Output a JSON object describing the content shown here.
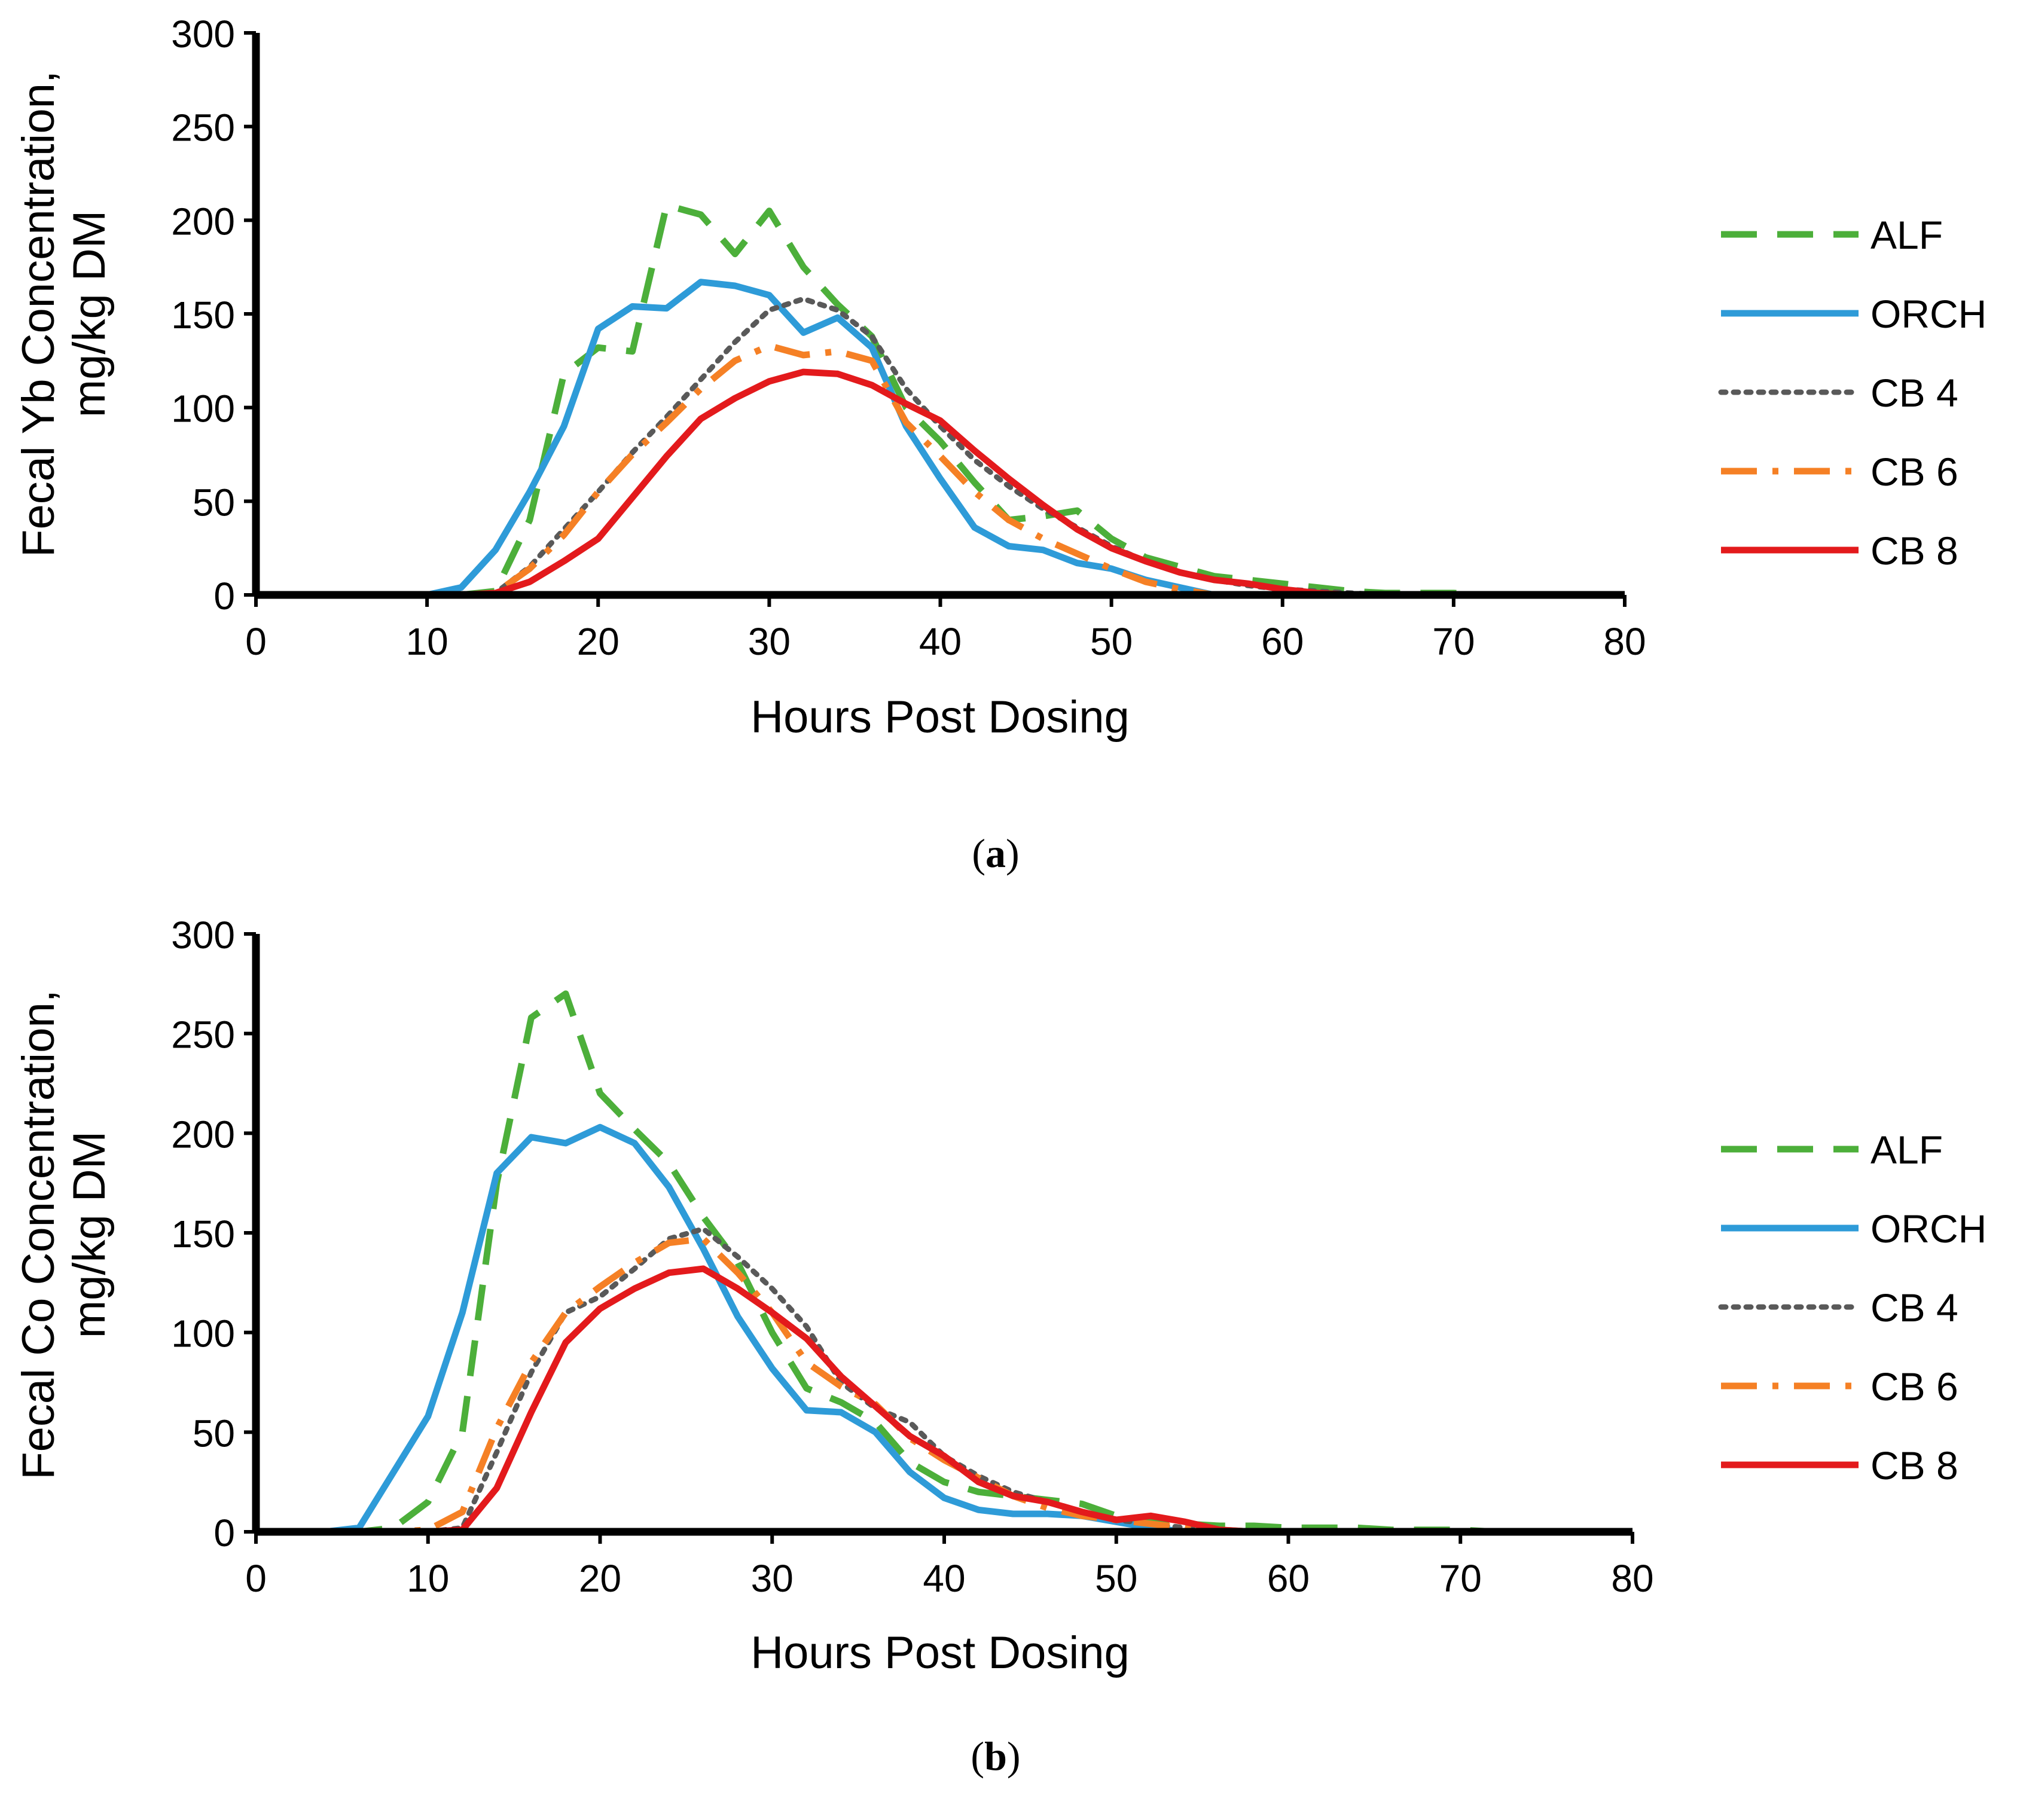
{
  "chart_data": [
    {
      "type": "line",
      "panel_label": "a",
      "title": "",
      "xlabel": "Hours Post Dosing",
      "ylabel_line1": "Fecal Yb Concentration,",
      "ylabel_line2": "mg/kg DM",
      "xlim": [
        0,
        80
      ],
      "ylim": [
        0,
        300
      ],
      "xticks": [
        "0",
        "10",
        "20",
        "30",
        "40",
        "50",
        "60",
        "70",
        "80"
      ],
      "yticks": [
        "0",
        "50",
        "100",
        "150",
        "200",
        "250",
        "300"
      ],
      "grid": false,
      "legend_position": "right",
      "series": [
        {
          "name": "ALF",
          "color": "#4CAF3A",
          "dash": "dashed",
          "x": [
            2,
            4,
            6,
            8,
            10,
            12,
            14,
            16,
            18,
            20,
            22,
            24,
            26,
            28,
            30,
            32,
            34,
            36,
            38,
            40,
            42,
            44,
            46,
            48,
            50,
            52,
            54,
            56,
            58,
            60,
            62,
            64,
            66,
            68,
            70,
            72
          ],
          "y": [
            0,
            0,
            0,
            0,
            0,
            0,
            2,
            40,
            118,
            132,
            130,
            208,
            203,
            182,
            205,
            175,
            155,
            138,
            100,
            82,
            60,
            40,
            42,
            45,
            30,
            20,
            15,
            10,
            8,
            6,
            4,
            2,
            1,
            1,
            1,
            0
          ]
        },
        {
          "name": "ORCH",
          "color": "#2E9BD8",
          "dash": "solid",
          "x": [
            2,
            4,
            6,
            8,
            10,
            12,
            14,
            16,
            18,
            20,
            22,
            24,
            26,
            28,
            30,
            32,
            34,
            36,
            38,
            40,
            42,
            44,
            46,
            48,
            50,
            52,
            54,
            56,
            58,
            60,
            62,
            64,
            66,
            68,
            70,
            72
          ],
          "y": [
            0,
            0,
            0,
            0,
            0,
            4,
            24,
            55,
            90,
            142,
            154,
            153,
            167,
            165,
            160,
            140,
            148,
            132,
            90,
            62,
            36,
            26,
            24,
            17,
            14,
            8,
            4,
            0,
            0,
            0,
            0,
            0,
            0,
            0,
            0,
            0
          ]
        },
        {
          "name": "CB 4",
          "color": "#595959",
          "dash": "dotted",
          "x": [
            2,
            4,
            6,
            8,
            10,
            12,
            14,
            16,
            18,
            20,
            22,
            24,
            26,
            28,
            30,
            32,
            34,
            36,
            38,
            40,
            42,
            44,
            46,
            48,
            50,
            52,
            54,
            56,
            58,
            60,
            62,
            64,
            66,
            68,
            70,
            72
          ],
          "y": [
            0,
            0,
            0,
            0,
            0,
            0,
            1,
            15,
            35,
            55,
            76,
            95,
            115,
            135,
            152,
            158,
            152,
            138,
            110,
            90,
            72,
            58,
            46,
            36,
            26,
            18,
            12,
            8,
            5,
            3,
            2,
            1,
            0,
            0,
            0,
            0
          ]
        },
        {
          "name": "CB 6",
          "color": "#F58025",
          "dash": "dashdot",
          "x": [
            2,
            4,
            6,
            8,
            10,
            12,
            14,
            16,
            18,
            20,
            22,
            24,
            26,
            28,
            30,
            32,
            34,
            36,
            38,
            40,
            42,
            44,
            46,
            48,
            50,
            52,
            54,
            56,
            58,
            60,
            62,
            64,
            66,
            68,
            70,
            72
          ],
          "y": [
            0,
            0,
            0,
            0,
            0,
            0,
            1,
            14,
            32,
            55,
            75,
            92,
            110,
            125,
            133,
            128,
            130,
            125,
            92,
            74,
            55,
            40,
            30,
            22,
            14,
            7,
            3,
            0,
            0,
            0,
            0,
            0,
            0,
            0,
            0,
            0
          ]
        },
        {
          "name": "CB 8",
          "color": "#E31A1C",
          "dash": "solid",
          "x": [
            2,
            4,
            6,
            8,
            10,
            12,
            14,
            16,
            18,
            20,
            22,
            24,
            26,
            28,
            30,
            32,
            34,
            36,
            38,
            40,
            42,
            44,
            46,
            48,
            50,
            52,
            54,
            56,
            58,
            60,
            62,
            64,
            66,
            68,
            70,
            72
          ],
          "y": [
            0,
            0,
            0,
            0,
            0,
            0,
            1,
            7,
            18,
            30,
            52,
            74,
            94,
            105,
            114,
            119,
            118,
            112,
            102,
            93,
            77,
            62,
            48,
            35,
            25,
            18,
            12,
            8,
            6,
            3,
            1,
            0,
            0,
            0,
            0,
            0
          ]
        }
      ]
    },
    {
      "type": "line",
      "panel_label": "b",
      "title": "",
      "xlabel": "Hours Post Dosing",
      "ylabel_line1": "Fecal Co Concentration,",
      "ylabel_line2": "mg/kg DM",
      "xlim": [
        0,
        80
      ],
      "ylim": [
        0,
        300
      ],
      "xticks": [
        "0",
        "10",
        "20",
        "30",
        "40",
        "50",
        "60",
        "70",
        "80"
      ],
      "yticks": [
        "0",
        "50",
        "100",
        "150",
        "200",
        "250",
        "300"
      ],
      "grid": false,
      "legend_position": "right",
      "series": [
        {
          "name": "ALF",
          "color": "#4CAF3A",
          "dash": "dashed",
          "x": [
            2,
            4,
            6,
            8,
            10,
            12,
            14,
            16,
            18,
            20,
            22,
            24,
            26,
            28,
            30,
            32,
            34,
            36,
            38,
            40,
            42,
            44,
            46,
            48,
            50,
            52,
            54,
            56,
            58,
            60,
            62,
            64,
            66,
            68,
            70,
            72
          ],
          "y": [
            0,
            0,
            0,
            2,
            15,
            50,
            175,
            258,
            270,
            220,
            202,
            185,
            158,
            135,
            100,
            72,
            65,
            55,
            35,
            25,
            20,
            18,
            16,
            14,
            8,
            5,
            4,
            3,
            3,
            2,
            2,
            2,
            1,
            1,
            1,
            0
          ]
        },
        {
          "name": "ORCH",
          "color": "#2E9BD8",
          "dash": "solid",
          "x": [
            2,
            4,
            6,
            8,
            10,
            12,
            14,
            16,
            18,
            20,
            22,
            24,
            26,
            28,
            30,
            32,
            34,
            36,
            38,
            40,
            42,
            44,
            46,
            48,
            50,
            52,
            54,
            56,
            58,
            60,
            62,
            64,
            66,
            68,
            70,
            72
          ],
          "y": [
            0,
            0,
            2,
            30,
            58,
            110,
            180,
            198,
            195,
            203,
            195,
            173,
            142,
            108,
            82,
            61,
            60,
            50,
            30,
            17,
            11,
            9,
            9,
            8,
            5,
            2,
            0,
            0,
            0,
            0,
            0,
            0,
            0,
            0,
            0,
            0
          ]
        },
        {
          "name": "CB 4",
          "color": "#595959",
          "dash": "dotted",
          "x": [
            2,
            4,
            6,
            8,
            10,
            12,
            14,
            16,
            18,
            20,
            22,
            24,
            26,
            28,
            30,
            32,
            34,
            36,
            38,
            40,
            42,
            44,
            46,
            48,
            50,
            52,
            54,
            56,
            58,
            60,
            62,
            64,
            66,
            68,
            70,
            72
          ],
          "y": [
            0,
            0,
            0,
            0,
            0,
            2,
            40,
            80,
            110,
            118,
            132,
            147,
            152,
            138,
            122,
            103,
            75,
            62,
            55,
            38,
            28,
            20,
            15,
            10,
            6,
            4,
            2,
            1,
            0,
            0,
            0,
            0,
            0,
            0,
            0,
            0
          ]
        },
        {
          "name": "CB 6",
          "color": "#F58025",
          "dash": "dashdot",
          "x": [
            2,
            4,
            6,
            8,
            10,
            12,
            14,
            16,
            18,
            20,
            22,
            24,
            26,
            28,
            30,
            32,
            34,
            36,
            38,
            40,
            42,
            44,
            46,
            48,
            50,
            52,
            54,
            56,
            58,
            60,
            62,
            64,
            66,
            68,
            70,
            72
          ],
          "y": [
            0,
            0,
            0,
            0,
            1,
            10,
            52,
            85,
            110,
            123,
            135,
            145,
            147,
            130,
            110,
            85,
            73,
            64,
            47,
            36,
            27,
            18,
            12,
            8,
            6,
            4,
            2,
            1,
            0,
            0,
            0,
            0,
            0,
            0,
            0,
            0
          ]
        },
        {
          "name": "CB 8",
          "color": "#E31A1C",
          "dash": "solid",
          "x": [
            2,
            4,
            6,
            8,
            10,
            12,
            14,
            16,
            18,
            20,
            22,
            24,
            26,
            28,
            30,
            32,
            34,
            36,
            38,
            40,
            42,
            44,
            46,
            48,
            50,
            52,
            54,
            56,
            58,
            60,
            62,
            64,
            66,
            68,
            70,
            72
          ],
          "y": [
            0,
            0,
            0,
            0,
            0,
            1,
            22,
            60,
            95,
            112,
            122,
            130,
            132,
            122,
            110,
            97,
            78,
            63,
            48,
            38,
            25,
            18,
            15,
            10,
            6,
            8,
            5,
            1,
            0,
            0,
            0,
            0,
            0,
            0,
            0,
            0
          ]
        }
      ]
    }
  ]
}
